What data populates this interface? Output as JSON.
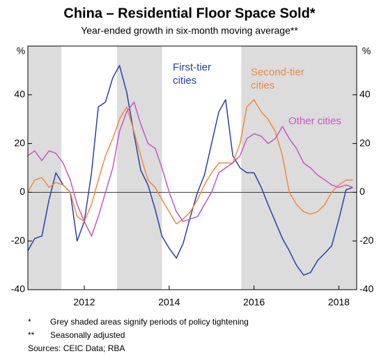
{
  "chart_data": {
    "type": "line",
    "title": "China – Residential Floor Space Sold*",
    "subtitle": "Year-ended growth in six-month moving average**",
    "y_unit": "%",
    "xlim": [
      2010.67,
      2018.42
    ],
    "xticks": [
      2012,
      2014,
      2016,
      2018
    ],
    "ylim": [
      -40,
      60
    ],
    "yticks": [
      -40,
      -20,
      0,
      20,
      40
    ],
    "shaded": [
      [
        2010.67,
        2011.46
      ],
      [
        2012.77,
        2013.83
      ],
      [
        2015.7,
        2018.42
      ]
    ],
    "shade_color": "#dcdcdc",
    "x": [
      2010.67,
      2010.83,
      2011.0,
      2011.17,
      2011.33,
      2011.5,
      2011.67,
      2011.83,
      2012.0,
      2012.17,
      2012.33,
      2012.5,
      2012.67,
      2012.83,
      2013.0,
      2013.17,
      2013.33,
      2013.5,
      2013.67,
      2013.83,
      2014.0,
      2014.17,
      2014.33,
      2014.5,
      2014.67,
      2014.83,
      2015.0,
      2015.17,
      2015.33,
      2015.5,
      2015.67,
      2015.83,
      2016.0,
      2016.17,
      2016.33,
      2016.5,
      2016.67,
      2016.83,
      2017.0,
      2017.17,
      2017.33,
      2017.5,
      2017.67,
      2017.83,
      2018.0,
      2018.17,
      2018.33
    ],
    "series": [
      {
        "name": "First-tier cities",
        "color": "#2b3ea8",
        "values": [
          -24,
          -19,
          -18,
          -3,
          8,
          3,
          0,
          -20,
          -12,
          8,
          35,
          37,
          47,
          52,
          41,
          24,
          9,
          3,
          -7,
          -18,
          -23,
          -27,
          -21,
          -10,
          0,
          7,
          20,
          33,
          38,
          15,
          10,
          8,
          8,
          2,
          -5,
          -12,
          -19,
          -24,
          -30,
          -34,
          -33,
          -28,
          -25,
          -22,
          -11,
          1,
          2
        ]
      },
      {
        "name": "Second-tier cities",
        "color": "#f5883a",
        "values": [
          0,
          5,
          6,
          2,
          4,
          3,
          0,
          -10,
          -12,
          -5,
          5,
          15,
          22,
          30,
          35,
          25,
          15,
          5,
          2,
          -3,
          -8,
          -13,
          -11,
          -8,
          -3,
          3,
          8,
          12,
          12,
          12,
          20,
          35,
          38,
          33,
          30,
          25,
          15,
          0,
          -5,
          -8,
          -9,
          -8,
          -5,
          0,
          3,
          5,
          5
        ]
      },
      {
        "name": "Other cities",
        "color": "#c655c8",
        "values": [
          15,
          17,
          13,
          17,
          16,
          12,
          5,
          -5,
          -12,
          -18,
          -10,
          0,
          10,
          25,
          33,
          37,
          28,
          20,
          18,
          10,
          0,
          -8,
          -12,
          -11,
          -10,
          -5,
          0,
          8,
          10,
          12,
          15,
          22,
          24,
          23,
          20,
          22,
          27,
          22,
          18,
          12,
          10,
          7,
          5,
          3,
          2,
          3,
          2
        ]
      }
    ],
    "notes": [
      {
        "marker": "*",
        "text": "Grey shaded areas signify periods of policy tightening"
      },
      {
        "marker": "**",
        "text": "Seasonally adjusted"
      }
    ],
    "sources": "Sources: CEIC Data; RBA"
  }
}
